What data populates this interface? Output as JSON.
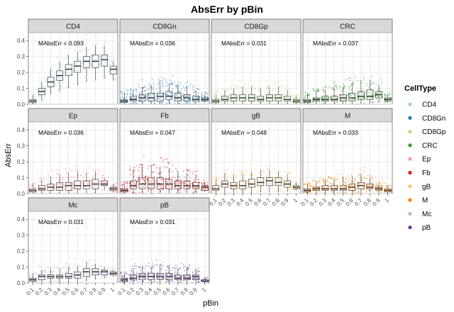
{
  "chart_data": {
    "type": "boxplot",
    "title": "AbsErr by pBin",
    "xlabel": "pBin",
    "ylabel": "AbsErr",
    "ylim": [
      0,
      0.45
    ],
    "y_ticks": [
      "0.0",
      "0.1",
      "0.2",
      "0.3",
      "0.4"
    ],
    "x_categories": [
      "0.1",
      "0.2",
      "0.3",
      "0.4",
      "0.5",
      "0.6",
      "0.7",
      "0.8",
      "0.9",
      "1"
    ],
    "grid": true,
    "legend": {
      "title": "CellType",
      "position": "right",
      "entries": [
        {
          "name": "CD4",
          "color": "#a6cee3"
        },
        {
          "name": "CD8Gn",
          "color": "#1f78b4"
        },
        {
          "name": "CD8Gp",
          "color": "#b2df8a"
        },
        {
          "name": "CRC",
          "color": "#33a02c"
        },
        {
          "name": "Ep",
          "color": "#fb9a99"
        },
        {
          "name": "Fb",
          "color": "#e31a1c"
        },
        {
          "name": "gB",
          "color": "#fdbf6f"
        },
        {
          "name": "M",
          "color": "#ff7f00"
        },
        {
          "name": "Mc",
          "color": "#cab2d6"
        },
        {
          "name": "pB",
          "color": "#6a3d9a"
        }
      ]
    },
    "panels": [
      {
        "label": "CD4",
        "color": "#a6cee3",
        "annotation": "MAbsErr = 0.093",
        "medians": [
          0.02,
          0.08,
          0.14,
          0.18,
          0.22,
          0.24,
          0.27,
          0.27,
          0.28,
          0.22
        ],
        "q1": [
          0.01,
          0.06,
          0.11,
          0.15,
          0.18,
          0.2,
          0.23,
          0.23,
          0.24,
          0.19
        ],
        "q3": [
          0.03,
          0.1,
          0.17,
          0.21,
          0.25,
          0.27,
          0.3,
          0.31,
          0.31,
          0.24
        ],
        "whisker_low": [
          0.0,
          0.02,
          0.06,
          0.08,
          0.1,
          0.12,
          0.14,
          0.15,
          0.16,
          0.15
        ],
        "whisker_high": [
          0.06,
          0.14,
          0.22,
          0.27,
          0.31,
          0.33,
          0.36,
          0.37,
          0.37,
          0.27
        ]
      },
      {
        "label": "CD8Gn",
        "color": "#1f78b4",
        "annotation": "MAbsErr = 0.036",
        "medians": [
          0.02,
          0.03,
          0.04,
          0.04,
          0.05,
          0.05,
          0.04,
          0.04,
          0.03,
          0.03
        ],
        "q1": [
          0.01,
          0.02,
          0.02,
          0.02,
          0.02,
          0.03,
          0.02,
          0.02,
          0.02,
          0.02
        ],
        "q3": [
          0.03,
          0.05,
          0.06,
          0.07,
          0.07,
          0.08,
          0.07,
          0.06,
          0.05,
          0.04
        ],
        "whisker_low": [
          0.0,
          0.0,
          0.0,
          0.0,
          0.0,
          0.0,
          0.0,
          0.0,
          0.0,
          0.01
        ],
        "whisker_high": [
          0.07,
          0.09,
          0.11,
          0.12,
          0.13,
          0.13,
          0.12,
          0.11,
          0.09,
          0.06
        ]
      },
      {
        "label": "CD8Gp",
        "color": "#b2df8a",
        "annotation": "MAbsErr = 0.031",
        "medians": [
          0.02,
          0.03,
          0.04,
          0.04,
          0.04,
          0.03,
          0.04,
          0.04,
          0.03,
          0.02
        ],
        "q1": [
          0.01,
          0.02,
          0.02,
          0.02,
          0.02,
          0.02,
          0.02,
          0.02,
          0.02,
          0.01
        ],
        "q3": [
          0.03,
          0.05,
          0.06,
          0.06,
          0.06,
          0.05,
          0.06,
          0.06,
          0.05,
          0.03
        ],
        "whisker_low": [
          0.0,
          0.0,
          0.0,
          0.0,
          0.0,
          0.0,
          0.0,
          0.0,
          0.0,
          0.0
        ],
        "whisker_high": [
          0.06,
          0.09,
          0.1,
          0.11,
          0.11,
          0.1,
          0.11,
          0.11,
          0.09,
          0.05
        ]
      },
      {
        "label": "CRC",
        "color": "#33a02c",
        "annotation": "MAbsErr = 0.037",
        "medians": [
          0.02,
          0.03,
          0.03,
          0.03,
          0.04,
          0.04,
          0.05,
          0.05,
          0.06,
          0.03
        ],
        "q1": [
          0.01,
          0.02,
          0.02,
          0.02,
          0.02,
          0.02,
          0.03,
          0.03,
          0.04,
          0.02
        ],
        "q3": [
          0.03,
          0.04,
          0.05,
          0.05,
          0.06,
          0.07,
          0.08,
          0.09,
          0.08,
          0.04
        ],
        "whisker_low": [
          0.0,
          0.0,
          0.0,
          0.0,
          0.0,
          0.0,
          0.0,
          0.0,
          0.01,
          0.01
        ],
        "whisker_high": [
          0.06,
          0.08,
          0.09,
          0.1,
          0.11,
          0.13,
          0.14,
          0.15,
          0.12,
          0.06
        ]
      },
      {
        "label": "Ep",
        "color": "#fb9a99",
        "annotation": "MAbsErr = 0.036",
        "medians": [
          0.02,
          0.03,
          0.04,
          0.04,
          0.05,
          0.05,
          0.05,
          0.06,
          0.06,
          0.03
        ],
        "q1": [
          0.01,
          0.02,
          0.02,
          0.02,
          0.02,
          0.03,
          0.03,
          0.03,
          0.05,
          0.02
        ],
        "q3": [
          0.03,
          0.05,
          0.06,
          0.07,
          0.07,
          0.08,
          0.08,
          0.09,
          0.08,
          0.04
        ],
        "whisker_low": [
          0.0,
          0.0,
          0.0,
          0.0,
          0.0,
          0.0,
          0.0,
          0.0,
          0.02,
          0.01
        ],
        "whisker_high": [
          0.06,
          0.09,
          0.11,
          0.12,
          0.13,
          0.14,
          0.13,
          0.14,
          0.1,
          0.06
        ]
      },
      {
        "label": "Fb",
        "color": "#e31a1c",
        "annotation": "MAbsErr = 0.047",
        "medians": [
          0.02,
          0.05,
          0.06,
          0.06,
          0.06,
          0.06,
          0.05,
          0.05,
          0.05,
          0.04
        ],
        "q1": [
          0.01,
          0.03,
          0.03,
          0.03,
          0.03,
          0.03,
          0.03,
          0.03,
          0.03,
          0.02
        ],
        "q3": [
          0.03,
          0.08,
          0.1,
          0.1,
          0.1,
          0.09,
          0.08,
          0.08,
          0.07,
          0.05
        ],
        "whisker_low": [
          0.0,
          0.0,
          0.0,
          0.0,
          0.0,
          0.0,
          0.0,
          0.0,
          0.0,
          0.01
        ],
        "whisker_high": [
          0.07,
          0.15,
          0.18,
          0.18,
          0.17,
          0.16,
          0.14,
          0.13,
          0.12,
          0.07
        ]
      },
      {
        "label": "gB",
        "color": "#fdbf6f",
        "annotation": "MAbsErr = 0.048",
        "medians": [
          0.03,
          0.06,
          0.05,
          0.05,
          0.06,
          0.07,
          0.08,
          0.07,
          0.06,
          0.04
        ],
        "q1": [
          0.02,
          0.04,
          0.03,
          0.03,
          0.04,
          0.05,
          0.05,
          0.05,
          0.04,
          0.03
        ],
        "q3": [
          0.05,
          0.08,
          0.07,
          0.08,
          0.09,
          0.1,
          0.1,
          0.1,
          0.08,
          0.05
        ],
        "whisker_low": [
          0.0,
          0.0,
          0.0,
          0.0,
          0.0,
          0.01,
          0.01,
          0.01,
          0.01,
          0.02
        ],
        "whisker_high": [
          0.09,
          0.13,
          0.12,
          0.13,
          0.14,
          0.15,
          0.15,
          0.14,
          0.12,
          0.07
        ]
      },
      {
        "label": "M",
        "color": "#ff7f00",
        "annotation": "MAbsErr = 0.033",
        "medians": [
          0.02,
          0.03,
          0.03,
          0.03,
          0.03,
          0.04,
          0.05,
          0.04,
          0.03,
          0.02
        ],
        "q1": [
          0.01,
          0.02,
          0.02,
          0.02,
          0.02,
          0.02,
          0.03,
          0.03,
          0.02,
          0.01
        ],
        "q3": [
          0.03,
          0.04,
          0.05,
          0.05,
          0.05,
          0.06,
          0.07,
          0.06,
          0.04,
          0.03
        ],
        "whisker_low": [
          0.0,
          0.0,
          0.0,
          0.0,
          0.0,
          0.0,
          0.0,
          0.01,
          0.0,
          0.0
        ],
        "whisker_high": [
          0.06,
          0.08,
          0.09,
          0.09,
          0.1,
          0.11,
          0.12,
          0.1,
          0.07,
          0.05
        ]
      },
      {
        "label": "Mc",
        "color": "#cab2d6",
        "annotation": "MAbsErr = 0.031",
        "medians": [
          0.02,
          0.04,
          0.04,
          0.04,
          0.04,
          0.05,
          0.07,
          0.07,
          0.07,
          0.06
        ],
        "q1": [
          0.01,
          0.02,
          0.03,
          0.03,
          0.03,
          0.03,
          0.04,
          0.05,
          0.05,
          0.05
        ],
        "q3": [
          0.03,
          0.05,
          0.05,
          0.05,
          0.06,
          0.07,
          0.09,
          0.09,
          0.08,
          0.07
        ],
        "whisker_low": [
          0.0,
          0.0,
          0.0,
          0.0,
          0.0,
          0.0,
          0.01,
          0.02,
          0.03,
          0.04
        ],
        "whisker_high": [
          0.06,
          0.08,
          0.09,
          0.09,
          0.1,
          0.11,
          0.13,
          0.12,
          0.1,
          0.08
        ]
      },
      {
        "label": "pB",
        "color": "#6a3d9a",
        "annotation": "MAbsErr = 0.031",
        "medians": [
          0.02,
          0.03,
          0.04,
          0.04,
          0.04,
          0.04,
          0.03,
          0.03,
          0.04,
          0.01
        ],
        "q1": [
          0.01,
          0.02,
          0.02,
          0.02,
          0.02,
          0.02,
          0.02,
          0.02,
          0.02,
          0.01
        ],
        "q3": [
          0.03,
          0.05,
          0.06,
          0.06,
          0.06,
          0.06,
          0.05,
          0.05,
          0.05,
          0.02
        ],
        "whisker_low": [
          0.0,
          0.0,
          0.0,
          0.0,
          0.0,
          0.0,
          0.0,
          0.0,
          0.0,
          0.0
        ],
        "whisker_high": [
          0.06,
          0.09,
          0.1,
          0.1,
          0.11,
          0.1,
          0.09,
          0.09,
          0.08,
          0.03
        ]
      }
    ]
  }
}
